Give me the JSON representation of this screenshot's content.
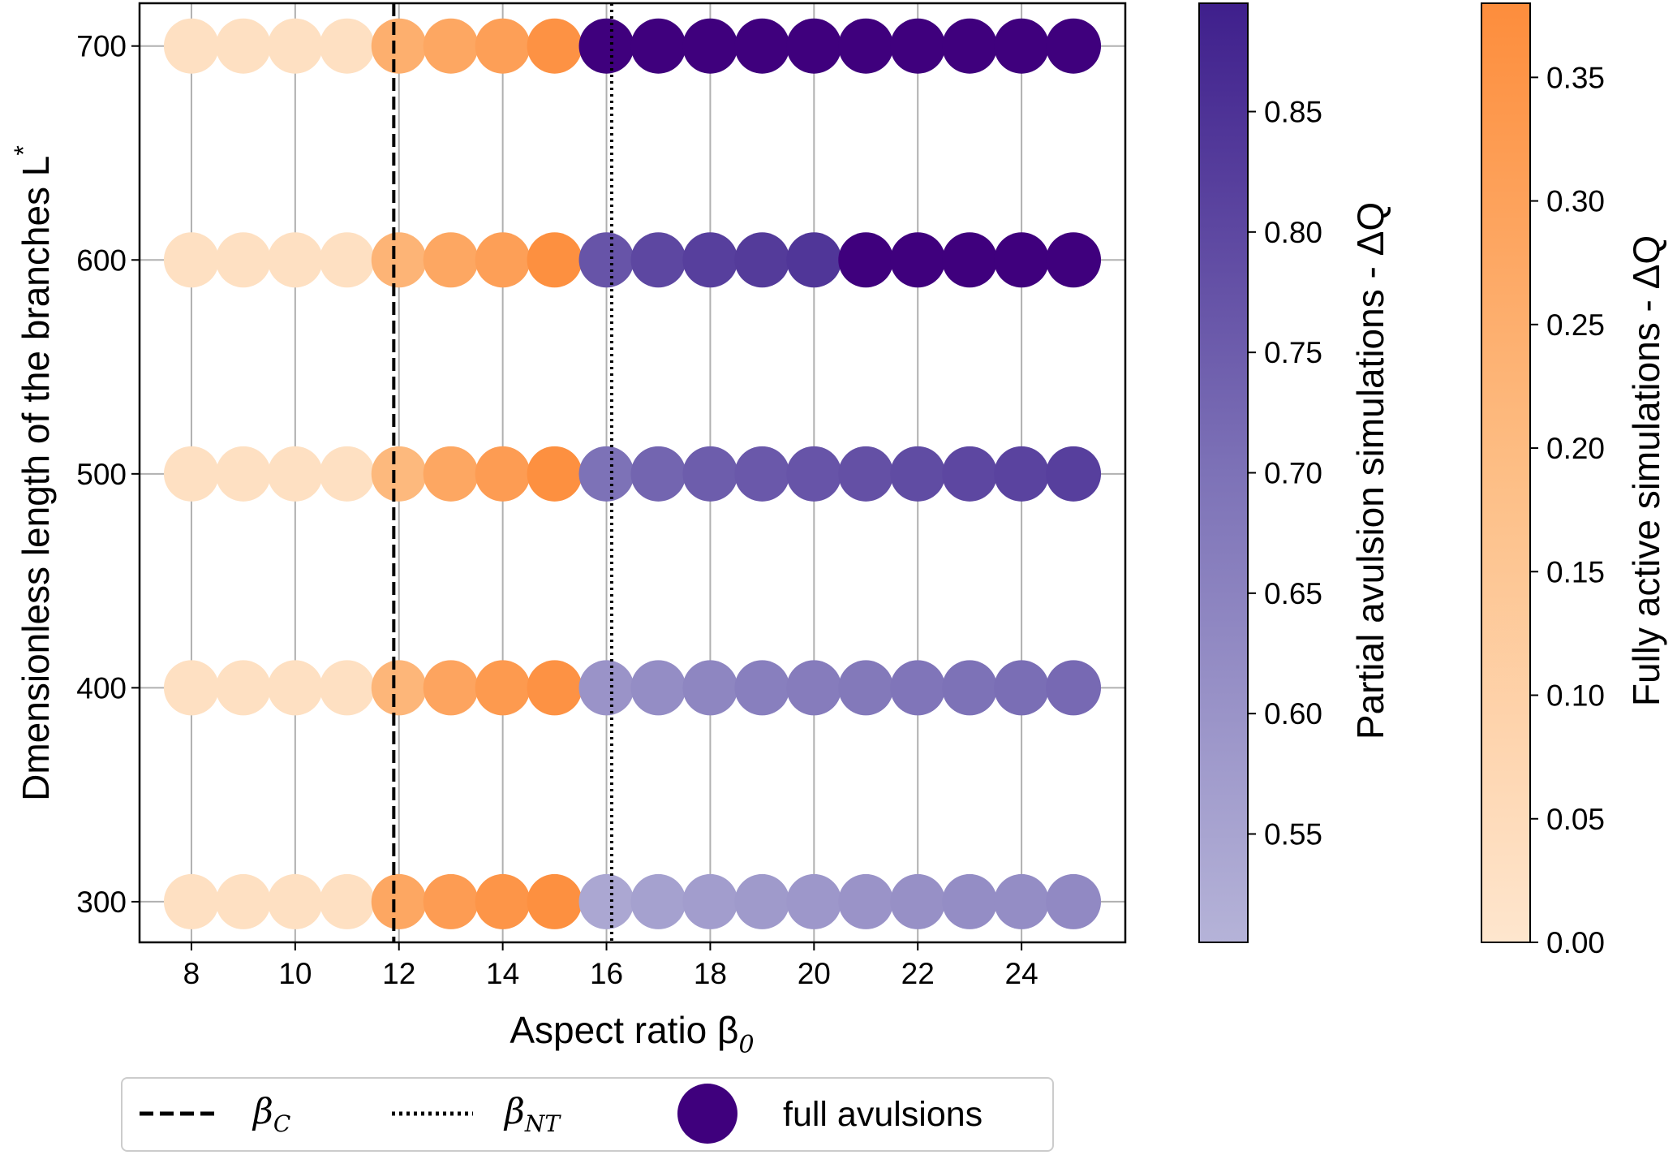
{
  "chart_data": {
    "type": "scatter",
    "xlabel": "Aspect ratio β",
    "xlabel_sub": "0",
    "ylabel": "Dmensionless length of the branches L",
    "ylabel_sup": "*",
    "xlim": [
      7,
      26
    ],
    "ylim": [
      281,
      720
    ],
    "x_ticks": [
      "8",
      "10",
      "12",
      "14",
      "16",
      "18",
      "20",
      "22",
      "24"
    ],
    "y_ticks": [
      "300",
      "400",
      "500",
      "600",
      "700"
    ],
    "grid": true,
    "vlines": [
      {
        "name": "β_C",
        "x": 11.9,
        "style": "dashed"
      },
      {
        "name": "β_NT",
        "x": 16.1,
        "style": "dotted"
      }
    ],
    "fully_active": {
      "x": [
        8,
        9,
        10,
        11,
        12,
        13,
        14,
        15
      ],
      "rows": [
        {
          "L": 300,
          "dQ": [
            0.03,
            0.03,
            0.03,
            0.03,
            0.28,
            0.32,
            0.35,
            0.37
          ]
        },
        {
          "L": 400,
          "dQ": [
            0.03,
            0.03,
            0.03,
            0.03,
            0.22,
            0.29,
            0.33,
            0.36
          ]
        },
        {
          "L": 500,
          "dQ": [
            0.03,
            0.03,
            0.03,
            0.03,
            0.21,
            0.28,
            0.32,
            0.37
          ]
        },
        {
          "L": 600,
          "dQ": [
            0.03,
            0.03,
            0.03,
            0.03,
            0.23,
            0.28,
            0.31,
            0.37
          ]
        },
        {
          "L": 700,
          "dQ": [
            0.03,
            0.03,
            0.03,
            0.03,
            0.25,
            0.28,
            0.31,
            0.36
          ]
        }
      ]
    },
    "partial_avulsion": {
      "x": [
        16,
        17,
        18,
        19,
        20,
        21,
        22,
        23,
        24,
        25
      ],
      "rows": [
        {
          "L": 300,
          "dQ": [
            0.54,
            0.56,
            0.57,
            0.58,
            0.59,
            0.6,
            0.61,
            0.62,
            0.62,
            0.63
          ]
        },
        {
          "L": 400,
          "dQ": [
            0.6,
            0.62,
            0.64,
            0.66,
            0.67,
            0.68,
            0.69,
            0.7,
            0.71,
            0.72
          ]
        },
        {
          "L": 500,
          "dQ": [
            0.7,
            0.73,
            0.75,
            0.76,
            0.77,
            0.78,
            0.79,
            0.8,
            0.81,
            0.82
          ]
        },
        {
          "L": 600,
          "dQ": [
            0.77,
            0.8,
            0.82,
            0.83,
            0.84,
            null,
            null,
            null,
            null,
            null
          ]
        },
        {
          "L": 700,
          "dQ": [
            null,
            null,
            null,
            null,
            null,
            null,
            null,
            null,
            null,
            null
          ]
        }
      ]
    },
    "full_avulsion_color": "#3f007d",
    "colorbar_partial": {
      "label": "Partial avulsion simulations - ΔQ",
      "range": [
        0.505,
        0.895
      ],
      "ticks": [
        "0.55",
        "0.60",
        "0.65",
        "0.70",
        "0.75",
        "0.80",
        "0.85"
      ],
      "color_low": "#b0b0d4",
      "color_high": "#3f1f8c"
    },
    "colorbar_active": {
      "label": "Fully active simulations - ΔQ",
      "range": [
        0.0,
        0.38
      ],
      "ticks": [
        "0.00",
        "0.05",
        "0.10",
        "0.15",
        "0.20",
        "0.25",
        "0.30",
        "0.35"
      ],
      "color_low": "#fee6ce",
      "color_high": "#fd8d3c"
    },
    "legend": {
      "position": "bottom-left, below plot",
      "entries": [
        {
          "label": "β",
          "sub": "C",
          "style": "dashed"
        },
        {
          "label": "β",
          "sub": "NT",
          "style": "dotted"
        },
        {
          "label": "full avulsions",
          "style": "marker"
        }
      ]
    }
  }
}
